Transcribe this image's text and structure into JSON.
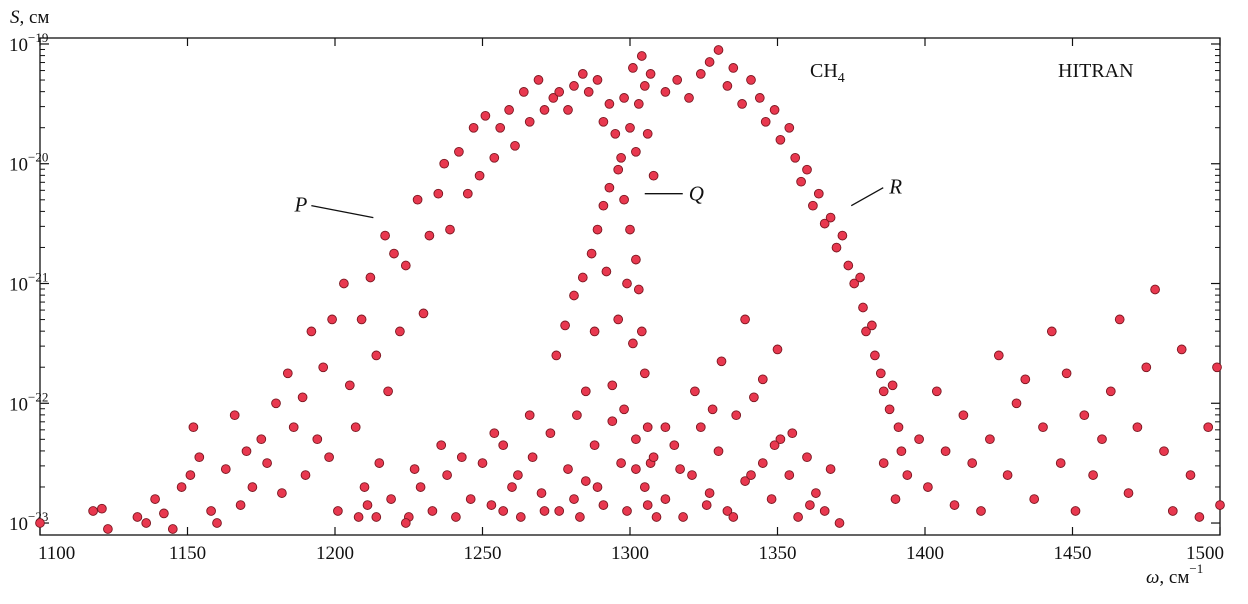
{
  "chart_data": {
    "type": "scatter",
    "source_label": "HITRAN",
    "molecule": {
      "base": "CH",
      "sub": "4"
    },
    "ylabel": {
      "symbol": "S",
      "unit": ", см"
    },
    "xlabel": {
      "symbol": "ω",
      "unit": ", см",
      "exp": "−1"
    },
    "xlim": [
      1100,
      1500
    ],
    "xticks": [
      "1100",
      "1150",
      "1200",
      "1250",
      "1300",
      "1350",
      "1400",
      "1450",
      "1500"
    ],
    "ylim_log10": [
      -23.1,
      -18.95
    ],
    "yscale": "log",
    "yticks": [
      {
        "base": "10",
        "exp": "−19",
        "log": -19
      },
      {
        "base": "10",
        "exp": "−20",
        "log": -20
      },
      {
        "base": "10",
        "exp": "−21",
        "log": -21
      },
      {
        "base": "10",
        "exp": "−22",
        "log": -22
      },
      {
        "base": "10",
        "exp": "−23",
        "log": -23
      }
    ],
    "grid": false,
    "branches": [
      {
        "label": "P",
        "x": 1213,
        "logS": -20.45
      },
      {
        "label": "Q",
        "x": 1305,
        "logS": -20.25
      },
      {
        "label": "R",
        "x": 1375,
        "logS": -20.35
      }
    ],
    "series": [
      {
        "points": [
          [
            1100,
            -23.0
          ],
          [
            1118,
            -22.9
          ],
          [
            1121,
            -22.88
          ],
          [
            1123,
            -23.05
          ],
          [
            1133,
            -22.95
          ],
          [
            1136,
            -23.0
          ],
          [
            1139,
            -22.8
          ],
          [
            1142,
            -22.92
          ],
          [
            1145,
            -23.05
          ],
          [
            1148,
            -22.7
          ],
          [
            1151,
            -22.6
          ],
          [
            1152,
            -22.2
          ],
          [
            1154,
            -22.45
          ],
          [
            1158,
            -22.9
          ],
          [
            1160,
            -23.0
          ],
          [
            1163,
            -22.55
          ],
          [
            1166,
            -22.1
          ],
          [
            1168,
            -22.85
          ],
          [
            1170,
            -22.4
          ],
          [
            1172,
            -22.7
          ],
          [
            1175,
            -22.3
          ],
          [
            1177,
            -22.5
          ],
          [
            1180,
            -22.0
          ],
          [
            1182,
            -22.75
          ],
          [
            1184,
            -21.75
          ],
          [
            1186,
            -22.2
          ],
          [
            1189,
            -21.95
          ],
          [
            1190,
            -22.6
          ],
          [
            1192,
            -21.4
          ],
          [
            1194,
            -22.3
          ],
          [
            1196,
            -21.7
          ],
          [
            1198,
            -22.45
          ],
          [
            1199,
            -21.3
          ],
          [
            1201,
            -22.9
          ],
          [
            1203,
            -21.0
          ],
          [
            1205,
            -21.85
          ],
          [
            1207,
            -22.2
          ],
          [
            1209,
            -21.3
          ],
          [
            1210,
            -22.7
          ],
          [
            1212,
            -20.95
          ],
          [
            1214,
            -21.6
          ],
          [
            1215,
            -22.5
          ],
          [
            1217,
            -20.6
          ],
          [
            1218,
            -21.9
          ],
          [
            1220,
            -20.75
          ],
          [
            1222,
            -21.4
          ],
          [
            1224,
            -20.85
          ],
          [
            1225,
            -22.95
          ],
          [
            1228,
            -20.3
          ],
          [
            1230,
            -21.25
          ],
          [
            1232,
            -20.6
          ],
          [
            1235,
            -20.25
          ],
          [
            1237,
            -20.0
          ],
          [
            1239,
            -20.55
          ],
          [
            1242,
            -19.9
          ],
          [
            1245,
            -20.25
          ],
          [
            1247,
            -19.7
          ],
          [
            1249,
            -20.1
          ],
          [
            1251,
            -19.6
          ],
          [
            1254,
            -19.95
          ],
          [
            1256,
            -19.7
          ],
          [
            1259,
            -19.55
          ],
          [
            1261,
            -19.85
          ],
          [
            1264,
            -19.4
          ],
          [
            1266,
            -19.65
          ],
          [
            1269,
            -19.3
          ],
          [
            1271,
            -19.55
          ],
          [
            1274,
            -19.45
          ],
          [
            1276,
            -19.4
          ],
          [
            1279,
            -19.55
          ],
          [
            1281,
            -19.35
          ],
          [
            1284,
            -19.25
          ],
          [
            1286,
            -19.4
          ],
          [
            1289,
            -19.3
          ],
          [
            1291,
            -19.65
          ],
          [
            1293,
            -19.5
          ],
          [
            1295,
            -19.75
          ],
          [
            1297,
            -19.95
          ],
          [
            1298,
            -19.45
          ],
          [
            1300,
            -19.7
          ],
          [
            1301,
            -19.2
          ],
          [
            1302,
            -19.9
          ],
          [
            1303,
            -19.5
          ],
          [
            1304,
            -19.1
          ],
          [
            1305,
            -19.35
          ],
          [
            1306,
            -19.75
          ],
          [
            1307,
            -19.25
          ],
          [
            1308,
            -20.1
          ],
          [
            1275,
            -21.6
          ],
          [
            1278,
            -21.35
          ],
          [
            1281,
            -21.1
          ],
          [
            1284,
            -20.95
          ],
          [
            1287,
            -20.75
          ],
          [
            1289,
            -20.55
          ],
          [
            1291,
            -20.35
          ],
          [
            1293,
            -20.2
          ],
          [
            1296,
            -20.05
          ],
          [
            1298,
            -20.3
          ],
          [
            1300,
            -20.55
          ],
          [
            1302,
            -20.8
          ],
          [
            1303,
            -21.05
          ],
          [
            1304,
            -21.4
          ],
          [
            1305,
            -21.75
          ],
          [
            1306,
            -22.2
          ],
          [
            1307,
            -22.5
          ],
          [
            1296,
            -21.3
          ],
          [
            1299,
            -21.0
          ],
          [
            1301,
            -21.5
          ],
          [
            1288,
            -21.4
          ],
          [
            1285,
            -21.9
          ],
          [
            1292,
            -20.9
          ],
          [
            1312,
            -19.4
          ],
          [
            1316,
            -19.3
          ],
          [
            1320,
            -19.45
          ],
          [
            1324,
            -19.25
          ],
          [
            1327,
            -19.15
          ],
          [
            1330,
            -19.05
          ],
          [
            1333,
            -19.35
          ],
          [
            1335,
            -19.2
          ],
          [
            1338,
            -19.5
          ],
          [
            1341,
            -19.3
          ],
          [
            1344,
            -19.45
          ],
          [
            1346,
            -19.65
          ],
          [
            1349,
            -19.55
          ],
          [
            1351,
            -19.8
          ],
          [
            1354,
            -19.7
          ],
          [
            1356,
            -19.95
          ],
          [
            1358,
            -20.15
          ],
          [
            1360,
            -20.05
          ],
          [
            1362,
            -20.35
          ],
          [
            1364,
            -20.25
          ],
          [
            1366,
            -20.5
          ],
          [
            1368,
            -20.45
          ],
          [
            1370,
            -20.7
          ],
          [
            1372,
            -20.6
          ],
          [
            1374,
            -20.85
          ],
          [
            1376,
            -21.0
          ],
          [
            1378,
            -20.95
          ],
          [
            1379,
            -21.2
          ],
          [
            1380,
            -21.4
          ],
          [
            1382,
            -21.35
          ],
          [
            1383,
            -21.6
          ],
          [
            1385,
            -21.75
          ],
          [
            1386,
            -21.9
          ],
          [
            1388,
            -22.05
          ],
          [
            1389,
            -21.85
          ],
          [
            1391,
            -22.2
          ],
          [
            1392,
            -22.4
          ],
          [
            1394,
            -22.6
          ],
          [
            1386,
            -22.5
          ],
          [
            1390,
            -22.8
          ],
          [
            1398,
            -22.3
          ],
          [
            1401,
            -22.7
          ],
          [
            1404,
            -21.9
          ],
          [
            1407,
            -22.4
          ],
          [
            1410,
            -22.85
          ],
          [
            1413,
            -22.1
          ],
          [
            1416,
            -22.5
          ],
          [
            1419,
            -22.9
          ],
          [
            1422,
            -22.3
          ],
          [
            1425,
            -21.6
          ],
          [
            1428,
            -22.6
          ],
          [
            1431,
            -22.0
          ],
          [
            1434,
            -21.8
          ],
          [
            1437,
            -22.8
          ],
          [
            1440,
            -22.2
          ],
          [
            1443,
            -21.4
          ],
          [
            1446,
            -22.5
          ],
          [
            1448,
            -21.75
          ],
          [
            1451,
            -22.9
          ],
          [
            1454,
            -22.1
          ],
          [
            1457,
            -22.6
          ],
          [
            1460,
            -22.3
          ],
          [
            1463,
            -21.9
          ],
          [
            1466,
            -21.3
          ],
          [
            1469,
            -22.75
          ],
          [
            1472,
            -22.2
          ],
          [
            1475,
            -21.7
          ],
          [
            1478,
            -21.05
          ],
          [
            1481,
            -22.4
          ],
          [
            1484,
            -22.9
          ],
          [
            1487,
            -21.55
          ],
          [
            1490,
            -22.6
          ],
          [
            1493,
            -22.95
          ],
          [
            1496,
            -22.2
          ],
          [
            1499,
            -21.7
          ],
          [
            1500,
            -22.85
          ],
          [
            1214,
            -22.95
          ],
          [
            1219,
            -22.8
          ],
          [
            1224,
            -23.0
          ],
          [
            1229,
            -22.7
          ],
          [
            1233,
            -22.9
          ],
          [
            1238,
            -22.6
          ],
          [
            1241,
            -22.95
          ],
          [
            1246,
            -22.8
          ],
          [
            1250,
            -22.5
          ],
          [
            1253,
            -22.85
          ],
          [
            1257,
            -22.35
          ],
          [
            1260,
            -22.7
          ],
          [
            1263,
            -22.95
          ],
          [
            1267,
            -22.45
          ],
          [
            1270,
            -22.75
          ],
          [
            1273,
            -22.25
          ],
          [
            1276,
            -22.9
          ],
          [
            1279,
            -22.55
          ],
          [
            1282,
            -22.1
          ],
          [
            1285,
            -22.65
          ],
          [
            1288,
            -22.35
          ],
          [
            1291,
            -22.85
          ],
          [
            1294,
            -22.15
          ],
          [
            1297,
            -22.5
          ],
          [
            1299,
            -22.9
          ],
          [
            1302,
            -22.3
          ],
          [
            1305,
            -22.7
          ],
          [
            1308,
            -22.45
          ],
          [
            1312,
            -22.8
          ],
          [
            1315,
            -22.35
          ],
          [
            1318,
            -22.95
          ],
          [
            1321,
            -22.6
          ],
          [
            1324,
            -22.2
          ],
          [
            1327,
            -22.75
          ],
          [
            1330,
            -22.4
          ],
          [
            1333,
            -22.9
          ],
          [
            1336,
            -22.1
          ],
          [
            1339,
            -22.65
          ],
          [
            1342,
            -21.95
          ],
          [
            1345,
            -22.5
          ],
          [
            1348,
            -22.8
          ],
          [
            1351,
            -22.3
          ],
          [
            1354,
            -22.6
          ],
          [
            1357,
            -22.95
          ],
          [
            1360,
            -22.45
          ],
          [
            1363,
            -22.75
          ],
          [
            1366,
            -22.9
          ],
          [
            1368,
            -22.55
          ],
          [
            1371,
            -23.0
          ],
          [
            1266,
            -22.1
          ],
          [
            1294,
            -21.85
          ],
          [
            1331,
            -21.65
          ],
          [
            1345,
            -21.8
          ],
          [
            1350,
            -21.55
          ],
          [
            1322,
            -21.9
          ],
          [
            1339,
            -21.3
          ],
          [
            1257,
            -22.9
          ],
          [
            1283,
            -22.95
          ],
          [
            1309,
            -22.95
          ],
          [
            1335,
            -22.95
          ],
          [
            1361,
            -22.85
          ],
          [
            1243,
            -22.45
          ],
          [
            1271,
            -22.9
          ],
          [
            1317,
            -22.55
          ],
          [
            1355,
            -22.25
          ],
          [
            1312,
            -22.2
          ],
          [
            1298,
            -22.05
          ],
          [
            1281,
            -22.8
          ],
          [
            1328,
            -22.05
          ],
          [
            1349,
            -22.35
          ],
          [
            1262,
            -22.6
          ],
          [
            1236,
            -22.35
          ],
          [
            1208,
            -22.95
          ],
          [
            1211,
            -22.85
          ],
          [
            1227,
            -22.55
          ],
          [
            1254,
            -22.25
          ],
          [
            1289,
            -22.7
          ],
          [
            1302,
            -22.55
          ],
          [
            1306,
            -22.85
          ],
          [
            1326,
            -22.85
          ],
          [
            1341,
            -22.6
          ]
        ]
      }
    ]
  }
}
